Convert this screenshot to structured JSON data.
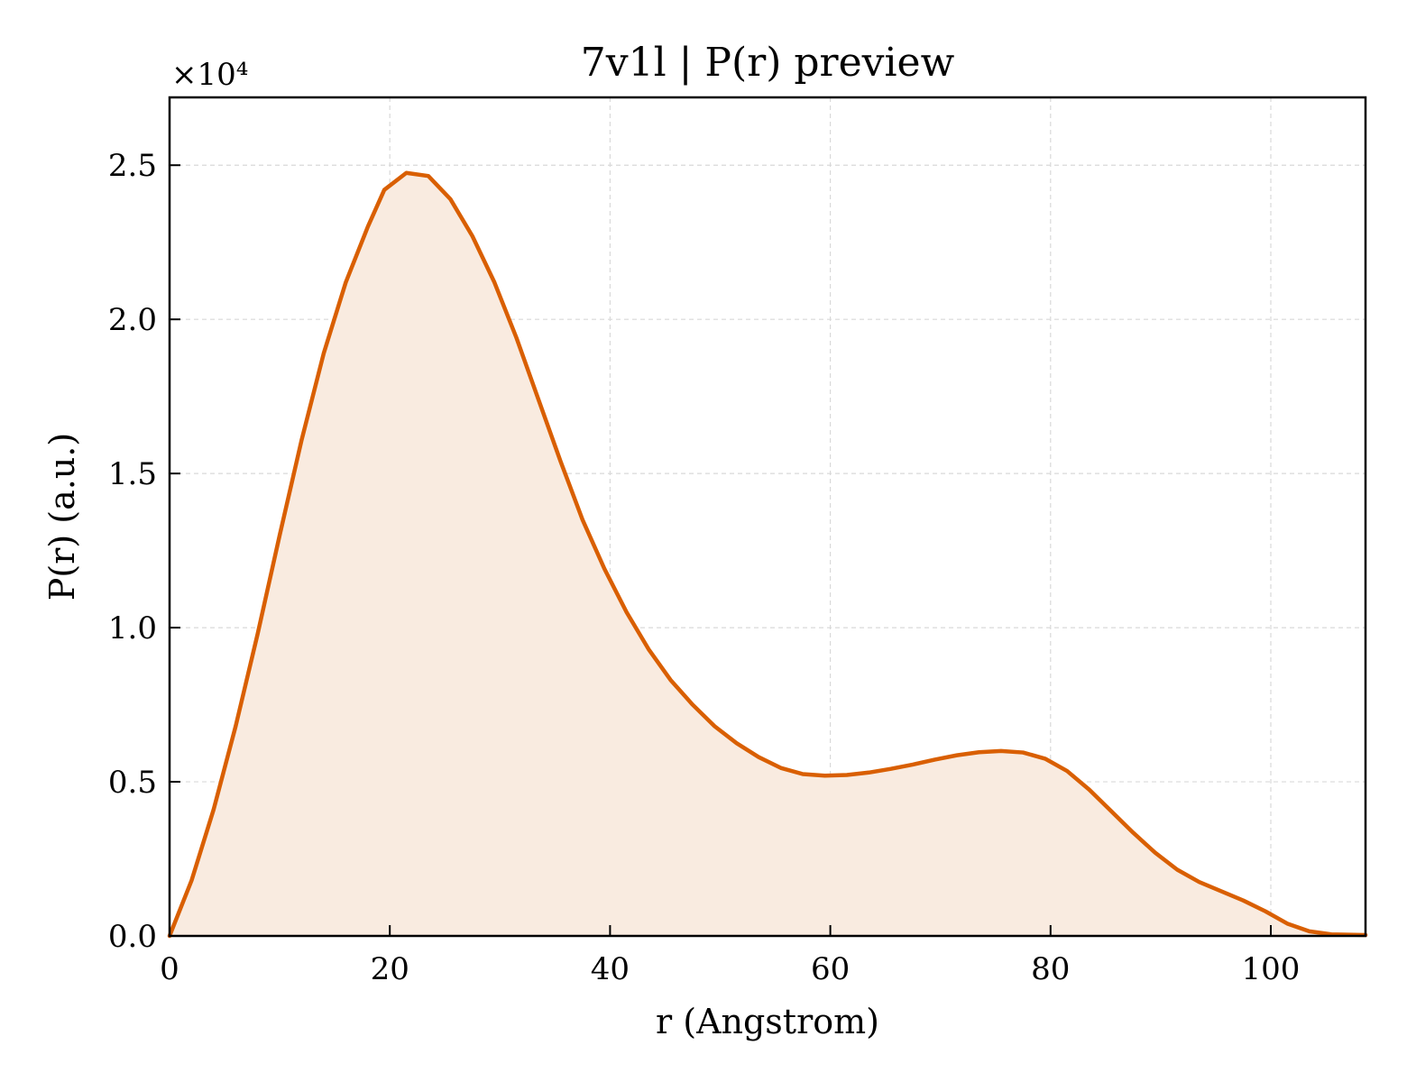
{
  "chart_data": {
    "type": "area",
    "title": "7v1l | P(r) preview",
    "xlabel": "r (Angstrom)",
    "ylabel": "P(r) (a.u.)",
    "y_multiplier": "×10⁴",
    "y_scale": 10000,
    "xlim": [
      0,
      108.6
    ],
    "ylim": [
      0,
      2.72
    ],
    "xticks": [
      0,
      20,
      40,
      60,
      80,
      100
    ],
    "xtick_labels": [
      "0",
      "20",
      "40",
      "60",
      "80",
      "100"
    ],
    "yticks": [
      0.0,
      0.5,
      1.0,
      1.5,
      2.0,
      2.5
    ],
    "ytick_labels": [
      "0.0",
      "0.5",
      "1.0",
      "1.5",
      "2.0",
      "2.5"
    ],
    "grid": true,
    "line_color": "#d95f02",
    "fill_color": "#f9ebe0",
    "series": [
      {
        "x": [
          0,
          2,
          4,
          6,
          8,
          10,
          12,
          14,
          16,
          18,
          19.5,
          21.5,
          23.5,
          25.5,
          27.5,
          29.5,
          31.5,
          33.5,
          35.5,
          37.5,
          39.5,
          41.5,
          43.5,
          45.5,
          47.5,
          49.5,
          51.5,
          53.5,
          55.5,
          57.5,
          59.5,
          61.5,
          63.5,
          65.5,
          67.5,
          69.5,
          71.5,
          73.5,
          75.5,
          77.5,
          79.5,
          81.5,
          83.5,
          85.5,
          87.5,
          89.5,
          91.5,
          93.5,
          95.5,
          97.5,
          99.5,
          101.5,
          103.5,
          105.5,
          108.6
        ],
        "y": [
          0.0,
          0.18,
          0.41,
          0.68,
          0.98,
          1.3,
          1.61,
          1.89,
          2.12,
          2.3,
          2.42,
          2.475,
          2.465,
          2.39,
          2.27,
          2.12,
          1.94,
          1.74,
          1.54,
          1.35,
          1.19,
          1.05,
          0.93,
          0.83,
          0.75,
          0.68,
          0.625,
          0.58,
          0.545,
          0.525,
          0.52,
          0.522,
          0.53,
          0.542,
          0.556,
          0.572,
          0.586,
          0.596,
          0.6,
          0.595,
          0.575,
          0.535,
          0.475,
          0.405,
          0.335,
          0.27,
          0.215,
          0.175,
          0.145,
          0.115,
          0.08,
          0.04,
          0.015,
          0.005,
          0.003
        ]
      }
    ]
  }
}
